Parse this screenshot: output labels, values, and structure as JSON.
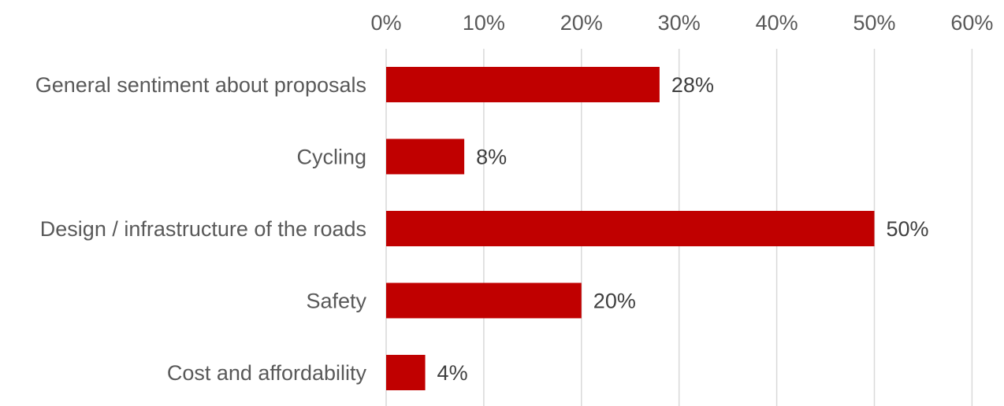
{
  "chart_data": {
    "type": "bar",
    "orientation": "horizontal",
    "categories": [
      "General sentiment about proposals",
      "Cycling",
      "Design / infrastructure of the roads",
      "Safety",
      "Cost and affordability"
    ],
    "values": [
      28,
      8,
      50,
      20,
      4
    ],
    "value_labels": [
      "28%",
      "8%",
      "50%",
      "20%",
      "4%"
    ],
    "x_ticks": [
      "0%",
      "10%",
      "20%",
      "30%",
      "40%",
      "50%",
      "60%"
    ],
    "x_tick_values": [
      0,
      10,
      20,
      30,
      40,
      50,
      60
    ],
    "xlim": [
      0,
      60
    ],
    "x_axis_position": "top",
    "grid": true,
    "legend": "none",
    "title": "",
    "xlabel": "",
    "ylabel": "",
    "colors": {
      "bar": "#c00000",
      "gridline": "#d9d9d9",
      "tick_text": "#595959",
      "data_label_text": "#404040"
    }
  }
}
